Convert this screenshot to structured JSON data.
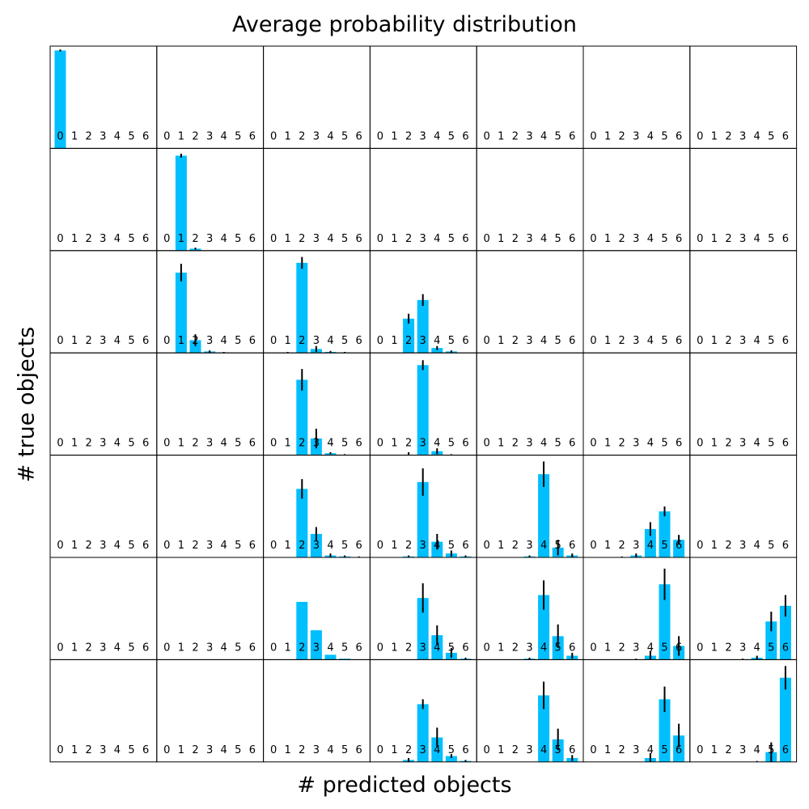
{
  "chart_data": {
    "type": "bar",
    "title": "Average probability distribution",
    "xlabel": "# predicted objects",
    "ylabel": "# true objects",
    "grid": false,
    "bar_color": "#00bfff",
    "error_color": "#000000",
    "categories": [
      "0",
      "1",
      "2",
      "3",
      "4",
      "5",
      "6"
    ],
    "ylim": [
      0,
      1
    ],
    "cells": [
      [
        {
          "values": [
            1.0,
            0,
            0,
            0,
            0,
            0,
            0
          ],
          "errors": [
            0.01,
            0,
            0,
            0,
            0,
            0,
            0
          ]
        },
        {
          "values": [
            0,
            0,
            0,
            0,
            0,
            0,
            0
          ],
          "errors": [
            0,
            0,
            0,
            0,
            0,
            0,
            0
          ]
        },
        {
          "values": [
            0,
            0,
            0,
            0,
            0,
            0,
            0
          ],
          "errors": [
            0,
            0,
            0,
            0,
            0,
            0,
            0
          ]
        },
        {
          "values": [
            0,
            0,
            0,
            0,
            0,
            0,
            0
          ],
          "errors": [
            0,
            0,
            0,
            0,
            0,
            0,
            0
          ]
        },
        {
          "values": [
            0,
            0,
            0,
            0,
            0,
            0,
            0
          ],
          "errors": [
            0,
            0,
            0,
            0,
            0,
            0,
            0
          ]
        },
        {
          "values": [
            0,
            0,
            0,
            0,
            0,
            0,
            0
          ],
          "errors": [
            0,
            0,
            0,
            0,
            0,
            0,
            0
          ]
        },
        {
          "values": [
            0,
            0,
            0,
            0,
            0,
            0,
            0
          ],
          "errors": [
            0,
            0,
            0,
            0,
            0,
            0,
            0
          ]
        }
      ],
      [
        {
          "values": [
            0,
            0,
            0,
            0,
            0,
            0,
            0
          ],
          "errors": [
            0,
            0,
            0,
            0,
            0,
            0,
            0
          ]
        },
        {
          "values": [
            0,
            0.97,
            0.02,
            0,
            0,
            0,
            0
          ],
          "errors": [
            0,
            0.02,
            0.01,
            0,
            0,
            0,
            0
          ]
        },
        {
          "values": [
            0,
            0,
            0,
            0,
            0,
            0,
            0
          ],
          "errors": [
            0,
            0,
            0,
            0,
            0,
            0,
            0
          ]
        },
        {
          "values": [
            0,
            0,
            0,
            0,
            0,
            0,
            0
          ],
          "errors": [
            0,
            0,
            0,
            0,
            0,
            0,
            0
          ]
        },
        {
          "values": [
            0,
            0,
            0,
            0,
            0,
            0,
            0
          ],
          "errors": [
            0,
            0,
            0,
            0,
            0,
            0,
            0
          ]
        },
        {
          "values": [
            0,
            0,
            0,
            0,
            0,
            0,
            0
          ],
          "errors": [
            0,
            0,
            0,
            0,
            0,
            0,
            0
          ]
        },
        {
          "values": [
            0,
            0,
            0,
            0,
            0,
            0,
            0
          ],
          "errors": [
            0,
            0,
            0,
            0,
            0,
            0,
            0
          ]
        }
      ],
      [
        {
          "values": [
            0,
            0,
            0,
            0,
            0,
            0,
            0
          ],
          "errors": [
            0,
            0,
            0,
            0,
            0,
            0,
            0
          ]
        },
        {
          "values": [
            0,
            0.82,
            0.13,
            0.015,
            0.005,
            0,
            0
          ],
          "errors": [
            0,
            0.09,
            0.06,
            0.01,
            0.005,
            0,
            0
          ]
        },
        {
          "values": [
            0,
            0,
            0.92,
            0.04,
            0.01,
            0.005,
            0
          ],
          "errors": [
            0,
            0.01,
            0.06,
            0.03,
            0.01,
            0.005,
            0
          ]
        },
        {
          "values": [
            0,
            0,
            0.35,
            0.54,
            0.05,
            0.015,
            0
          ],
          "errors": [
            0,
            0,
            0.05,
            0.06,
            0.02,
            0.01,
            0
          ]
        },
        {
          "values": [
            0,
            0,
            0,
            0,
            0,
            0,
            0
          ],
          "errors": [
            0,
            0,
            0,
            0,
            0,
            0,
            0
          ]
        },
        {
          "values": [
            0,
            0,
            0,
            0,
            0,
            0,
            0
          ],
          "errors": [
            0,
            0,
            0,
            0,
            0,
            0,
            0
          ]
        },
        {
          "values": [
            0,
            0,
            0,
            0,
            0,
            0,
            0
          ],
          "errors": [
            0,
            0,
            0,
            0,
            0,
            0,
            0
          ]
        }
      ],
      [
        {
          "values": [
            0,
            0,
            0,
            0,
            0,
            0,
            0
          ],
          "errors": [
            0,
            0,
            0,
            0,
            0,
            0,
            0
          ]
        },
        {
          "values": [
            0,
            0,
            0,
            0,
            0,
            0,
            0
          ],
          "errors": [
            0,
            0,
            0,
            0,
            0,
            0,
            0
          ]
        },
        {
          "values": [
            0,
            0,
            0.77,
            0.17,
            0.02,
            0,
            0
          ],
          "errors": [
            0,
            0,
            0.11,
            0.1,
            0.01,
            0.01,
            0
          ]
        },
        {
          "values": [
            0,
            0,
            0,
            0.92,
            0.04,
            0,
            0
          ],
          "errors": [
            0,
            0,
            0.03,
            0.05,
            0.03,
            0.01,
            0
          ]
        },
        {
          "values": [
            0,
            0,
            0,
            0,
            0,
            0,
            0
          ],
          "errors": [
            0,
            0,
            0,
            0,
            0,
            0,
            0
          ]
        },
        {
          "values": [
            0,
            0,
            0,
            0,
            0,
            0,
            0
          ],
          "errors": [
            0,
            0,
            0,
            0,
            0,
            0,
            0
          ]
        },
        {
          "values": [
            0,
            0,
            0,
            0,
            0,
            0,
            0
          ],
          "errors": [
            0,
            0,
            0,
            0,
            0,
            0,
            0
          ]
        }
      ],
      [
        {
          "values": [
            0,
            0,
            0,
            0,
            0,
            0,
            0
          ],
          "errors": [
            0,
            0,
            0,
            0,
            0,
            0,
            0
          ]
        },
        {
          "values": [
            0,
            0,
            0,
            0,
            0,
            0,
            0
          ],
          "errors": [
            0,
            0,
            0,
            0,
            0,
            0,
            0
          ]
        },
        {
          "values": [
            0,
            0,
            0.7,
            0.24,
            0.02,
            0.01,
            0
          ],
          "errors": [
            0,
            0,
            0.1,
            0.07,
            0.02,
            0.01,
            0.01
          ]
        },
        {
          "values": [
            0,
            0,
            0.01,
            0.77,
            0.16,
            0.04,
            0.01
          ],
          "errors": [
            0,
            0,
            0.01,
            0.14,
            0.08,
            0.03,
            0.01
          ]
        },
        {
          "values": [
            0,
            0,
            0,
            0.01,
            0.85,
            0.1,
            0.02
          ],
          "errors": [
            0,
            0,
            0,
            0.01,
            0.13,
            0.08,
            0.02
          ]
        },
        {
          "values": [
            0,
            0,
            0,
            0.02,
            0.29,
            0.47,
            0.18
          ],
          "errors": [
            0,
            0,
            0.01,
            0.02,
            0.07,
            0.05,
            0.05
          ]
        },
        {
          "values": [
            0,
            0,
            0,
            0,
            0,
            0,
            0
          ],
          "errors": [
            0,
            0,
            0,
            0,
            0,
            0,
            0
          ]
        }
      ],
      [
        {
          "values": [
            0,
            0,
            0,
            0,
            0,
            0,
            0
          ],
          "errors": [
            0,
            0,
            0,
            0,
            0,
            0,
            0
          ]
        },
        {
          "values": [
            0,
            0,
            0,
            0,
            0,
            0,
            0
          ],
          "errors": [
            0,
            0,
            0,
            0,
            0,
            0,
            0
          ]
        },
        {
          "values": [
            0,
            0,
            0.59,
            0.3,
            0.05,
            0.01,
            0
          ],
          "errors": [
            0,
            0,
            0,
            0,
            0,
            0,
            0
          ]
        },
        {
          "values": [
            0,
            0,
            0,
            0.63,
            0.25,
            0.07,
            0.01
          ],
          "errors": [
            0,
            0,
            0,
            0.15,
            0.1,
            0.05,
            0.01
          ]
        },
        {
          "values": [
            0,
            0,
            0,
            0.01,
            0.66,
            0.24,
            0.04
          ],
          "errors": [
            0,
            0,
            0,
            0.01,
            0.15,
            0.12,
            0.03
          ]
        },
        {
          "values": [
            0,
            0,
            0,
            0,
            0.04,
            0.77,
            0.14
          ],
          "errors": [
            0,
            0,
            0,
            0.01,
            0.05,
            0.16,
            0.1
          ]
        },
        {
          "values": [
            0,
            0,
            0,
            0,
            0.02,
            0.39,
            0.55
          ],
          "errors": [
            0,
            0,
            0,
            0.01,
            0.02,
            0.1,
            0.11
          ]
        }
      ],
      [
        {
          "values": [
            0,
            0,
            0,
            0,
            0,
            0,
            0
          ],
          "errors": [
            0,
            0,
            0,
            0,
            0,
            0,
            0
          ]
        },
        {
          "values": [
            0,
            0,
            0,
            0,
            0,
            0,
            0
          ],
          "errors": [
            0,
            0,
            0,
            0,
            0,
            0,
            0
          ]
        },
        {
          "values": [
            0,
            0,
            0,
            0,
            0,
            0,
            0
          ],
          "errors": [
            0,
            0,
            0,
            0,
            0,
            0,
            0
          ]
        },
        {
          "values": [
            0,
            0,
            0.02,
            0.59,
            0.25,
            0.06,
            0.01
          ],
          "errors": [
            0,
            0,
            0.02,
            0.05,
            0.1,
            0.02,
            0.01
          ]
        },
        {
          "values": [
            0,
            0,
            0,
            0,
            0.68,
            0.23,
            0.04
          ],
          "errors": [
            0,
            0,
            0,
            0,
            0.14,
            0.11,
            0.03
          ]
        },
        {
          "values": [
            0,
            0,
            0,
            0,
            0.04,
            0.64,
            0.27
          ],
          "errors": [
            0,
            0,
            0,
            0,
            0.05,
            0.13,
            0.12
          ]
        },
        {
          "values": [
            0,
            0,
            0,
            0,
            0,
            0.1,
            0.86
          ],
          "errors": [
            0,
            0,
            0,
            0,
            0.01,
            0.1,
            0.12
          ]
        }
      ]
    ]
  }
}
